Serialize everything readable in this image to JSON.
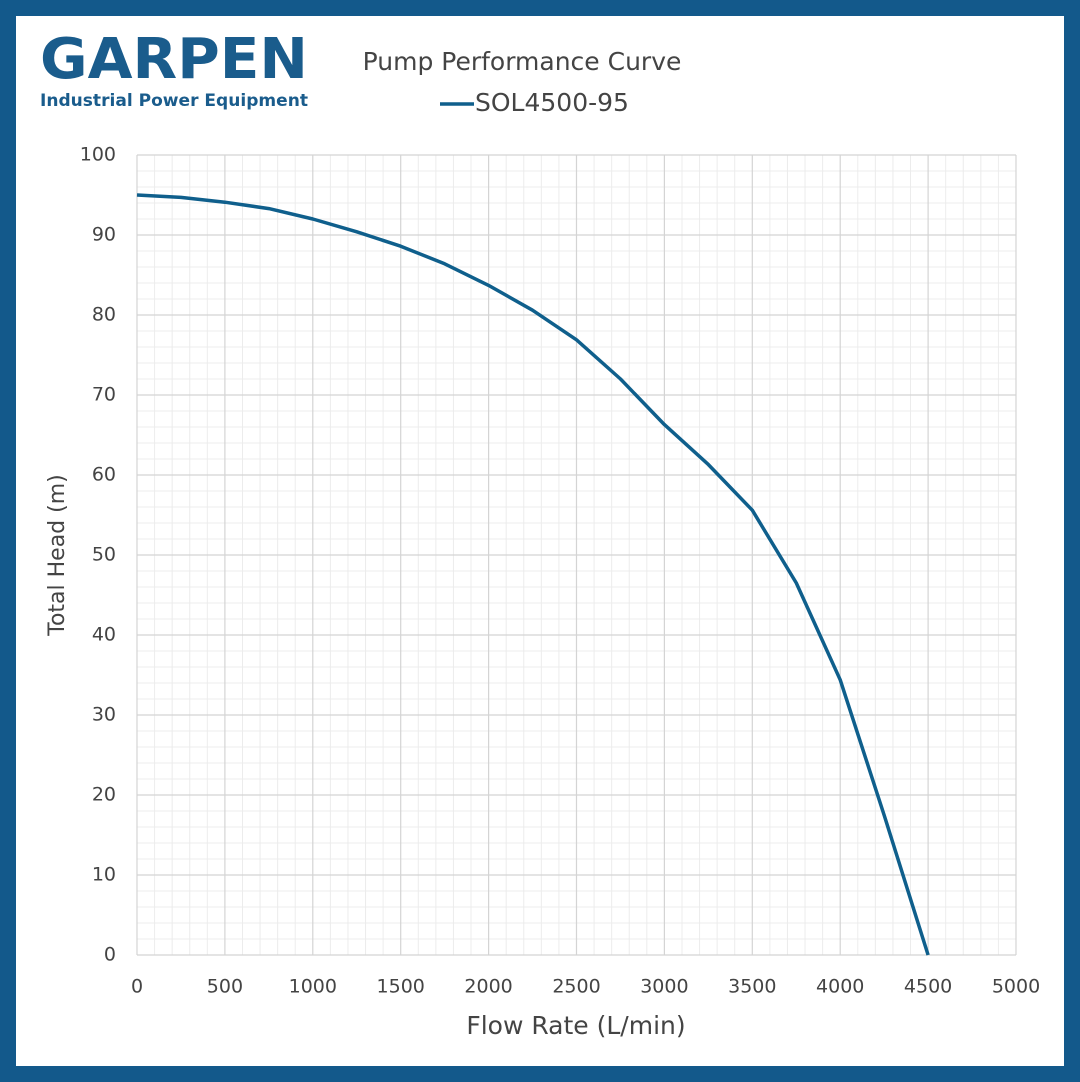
{
  "chart_data": {
    "type": "line",
    "brand": "GARPEN",
    "brand_tagline": "Industrial Power Equipment",
    "title": "Pump Performance Curve",
    "x_label": "Flow Rate (L/min)",
    "y_label": "Total Head (m)",
    "x": [
      0,
      250,
      500,
      750,
      1000,
      1250,
      1500,
      1750,
      2000,
      2250,
      2500,
      2750,
      3000,
      3250,
      3500,
      3750,
      4000,
      4250,
      4500
    ],
    "series": [
      {
        "name": "SOL4500-95",
        "color": "#0f5f8c",
        "values": [
          95,
          94.7,
          94.1,
          93.3,
          92.0,
          90.4,
          88.6,
          86.4,
          83.7,
          80.6,
          76.9,
          72.0,
          66.3,
          61.3,
          55.6,
          46.5,
          34.4,
          17.5,
          0
        ]
      }
    ],
    "xlim": [
      0,
      5000
    ],
    "xticks": [
      0,
      500,
      1000,
      1500,
      2000,
      2500,
      3000,
      3500,
      4000,
      4500,
      5000
    ],
    "ylim": [
      0,
      100
    ],
    "yticks": [
      0,
      10,
      20,
      30,
      40,
      50,
      60,
      70,
      80,
      90,
      100
    ],
    "grid": true,
    "minor_grid": true
  }
}
